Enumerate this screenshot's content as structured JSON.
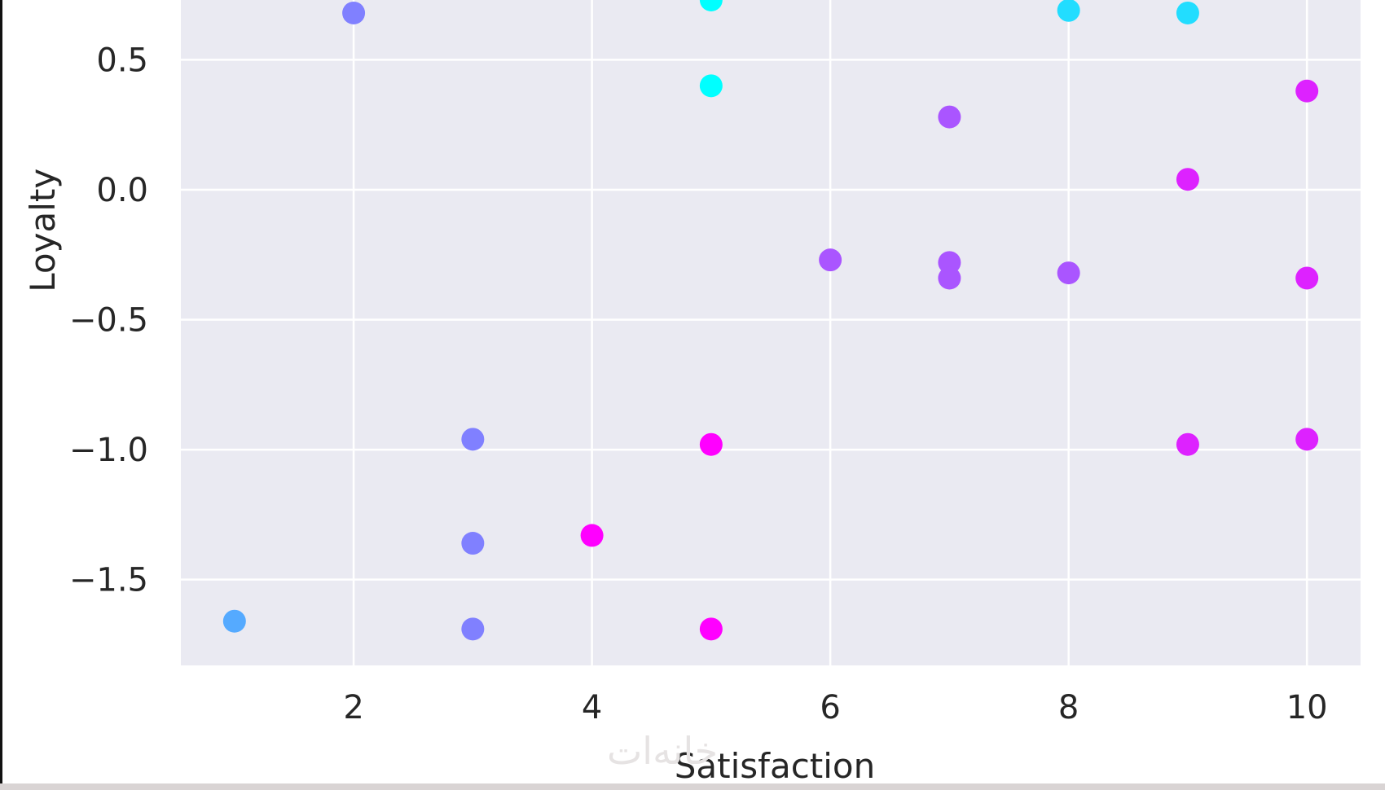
{
  "watermark": "خانه‌ات",
  "chart_data": {
    "type": "scatter",
    "xlabel": "Satisfaction",
    "ylabel": "Loyalty",
    "xlim": [
      0.55,
      10.45
    ],
    "ylim": [
      -1.83,
      0.73
    ],
    "xticks": [
      2,
      4,
      6,
      8,
      10
    ],
    "yticks": [
      0.5,
      0.0,
      -0.5,
      -1.0,
      -1.5
    ],
    "xtick_labels": [
      "2",
      "4",
      "6",
      "8",
      "10"
    ],
    "ytick_labels": [
      "0.5",
      "0.0",
      "−0.5",
      "−1.0",
      "−1.5"
    ],
    "grid": true,
    "background_color": "#eaeaf2",
    "grid_color": "#ffffff",
    "points": [
      {
        "x": 2,
        "y": 0.68,
        "color": "#8080ff"
      },
      {
        "x": 5,
        "y": 0.73,
        "color": "#00ffff"
      },
      {
        "x": 8,
        "y": 0.69,
        "color": "#22ddff"
      },
      {
        "x": 9,
        "y": 0.68,
        "color": "#22ddff"
      },
      {
        "x": 5,
        "y": 0.4,
        "color": "#00ffff"
      },
      {
        "x": 10,
        "y": 0.38,
        "color": "#dd22ff"
      },
      {
        "x": 7,
        "y": 0.28,
        "color": "#aa55ff"
      },
      {
        "x": 9,
        "y": 0.04,
        "color": "#dd22ff"
      },
      {
        "x": 6,
        "y": -0.27,
        "color": "#aa55ff"
      },
      {
        "x": 7,
        "y": -0.28,
        "color": "#aa55ff"
      },
      {
        "x": 7,
        "y": -0.34,
        "color": "#aa55ff"
      },
      {
        "x": 8,
        "y": -0.32,
        "color": "#aa55ff"
      },
      {
        "x": 10,
        "y": -0.34,
        "color": "#dd22ff"
      },
      {
        "x": 3,
        "y": -0.96,
        "color": "#8080ff"
      },
      {
        "x": 5,
        "y": -0.98,
        "color": "#ff00ff"
      },
      {
        "x": 9,
        "y": -0.98,
        "color": "#dd22ff"
      },
      {
        "x": 10,
        "y": -0.96,
        "color": "#dd22ff"
      },
      {
        "x": 4,
        "y": -1.33,
        "color": "#ff00ff"
      },
      {
        "x": 3,
        "y": -1.36,
        "color": "#8080ff"
      },
      {
        "x": 1,
        "y": -1.66,
        "color": "#55aaff"
      },
      {
        "x": 3,
        "y": -1.69,
        "color": "#8080ff"
      },
      {
        "x": 5,
        "y": -1.69,
        "color": "#ff00ff"
      }
    ]
  }
}
